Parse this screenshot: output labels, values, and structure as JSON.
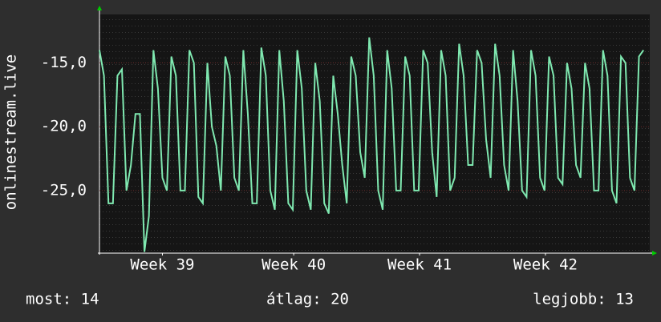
{
  "chart_data": {
    "type": "line",
    "y_label": "onlinestream.live",
    "xlim": [
      0,
      30.6
    ],
    "xticks": [
      {
        "value": 3.5,
        "label": "Week 39"
      },
      {
        "value": 10.8,
        "label": "Week 40"
      },
      {
        "value": 17.8,
        "label": "Week 41"
      },
      {
        "value": 24.8,
        "label": "Week 42"
      }
    ],
    "ylim": [
      -29.9,
      -11.2
    ],
    "yticks": [
      {
        "value": -15,
        "label": "-15,0"
      },
      {
        "value": -20,
        "label": "-20,0"
      },
      {
        "value": -25,
        "label": "-25,0"
      }
    ],
    "grid": true,
    "x": [
      0,
      0.25,
      0.5,
      0.75,
      1,
      1.25,
      1.5,
      1.75,
      2,
      2.25,
      2.5,
      2.75,
      3,
      3.25,
      3.5,
      3.75,
      4,
      4.25,
      4.5,
      4.75,
      5,
      5.25,
      5.5,
      5.75,
      6,
      6.25,
      6.5,
      6.75,
      7,
      7.25,
      7.5,
      7.75,
      8,
      8.25,
      8.5,
      8.75,
      9,
      9.25,
      9.5,
      9.75,
      10,
      10.25,
      10.5,
      10.75,
      11,
      11.25,
      11.5,
      11.75,
      12,
      12.25,
      12.5,
      12.75,
      13,
      13.25,
      13.5,
      13.75,
      14,
      14.25,
      14.5,
      14.75,
      15,
      15.25,
      15.5,
      15.75,
      16,
      16.25,
      16.5,
      16.75,
      17,
      17.25,
      17.5,
      17.75,
      18,
      18.25,
      18.5,
      18.75,
      19,
      19.25,
      19.5,
      19.75,
      20,
      20.25,
      20.5,
      20.75,
      21,
      21.25,
      21.5,
      21.75,
      22,
      22.25,
      22.5,
      22.75,
      23,
      23.25,
      23.5,
      23.75,
      24,
      24.25,
      24.5,
      24.75,
      25,
      25.25,
      25.5,
      25.75,
      26,
      26.25,
      26.5,
      26.75,
      27,
      27.25,
      27.5,
      27.75,
      28,
      28.25,
      28.5,
      28.75,
      29,
      29.25,
      29.5,
      29.75,
      30,
      30.25
    ],
    "series": [
      {
        "name": "onlinestream.live",
        "color": "#7fe8b0",
        "values": [
          -14,
          -16,
          -26,
          -26,
          -16,
          -15.5,
          -25,
          -23,
          -19,
          -19,
          -29.8,
          -27,
          -14,
          -17,
          -24,
          -25,
          -14.5,
          -16,
          -25,
          -25,
          -14,
          -15,
          -25.5,
          -26,
          -15,
          -20,
          -21.5,
          -25,
          -14.5,
          -16,
          -24,
          -25,
          -14,
          -19,
          -26,
          -26,
          -13.8,
          -16,
          -25,
          -26.5,
          -14,
          -18,
          -26,
          -26.5,
          -14,
          -17,
          -25,
          -26.5,
          -15,
          -18,
          -26,
          -26.8,
          -16,
          -19,
          -23,
          -26,
          -14.5,
          -16,
          -22,
          -24,
          -13,
          -16,
          -25,
          -26.5,
          -14,
          -17,
          -25,
          -25,
          -14.5,
          -16,
          -25,
          -25,
          -14,
          -15,
          -22,
          -25.5,
          -14,
          -16,
          -25,
          -24,
          -13.5,
          -16,
          -23,
          -23,
          -14,
          -15,
          -21,
          -24,
          -13.5,
          -16,
          -23,
          -25,
          -14,
          -18,
          -25,
          -25.5,
          -14,
          -16,
          -24,
          -25,
          -14.5,
          -16,
          -24,
          -24.5,
          -15,
          -17,
          -23,
          -24,
          -15,
          -17,
          -25,
          -25,
          -14,
          -16,
          -25,
          -26,
          -14.5,
          -15,
          -24,
          -25,
          -14.5,
          -14
        ]
      }
    ]
  },
  "footer": {
    "current": "most: 14",
    "average": "átlag: 20",
    "best": "legjobb: 13"
  }
}
